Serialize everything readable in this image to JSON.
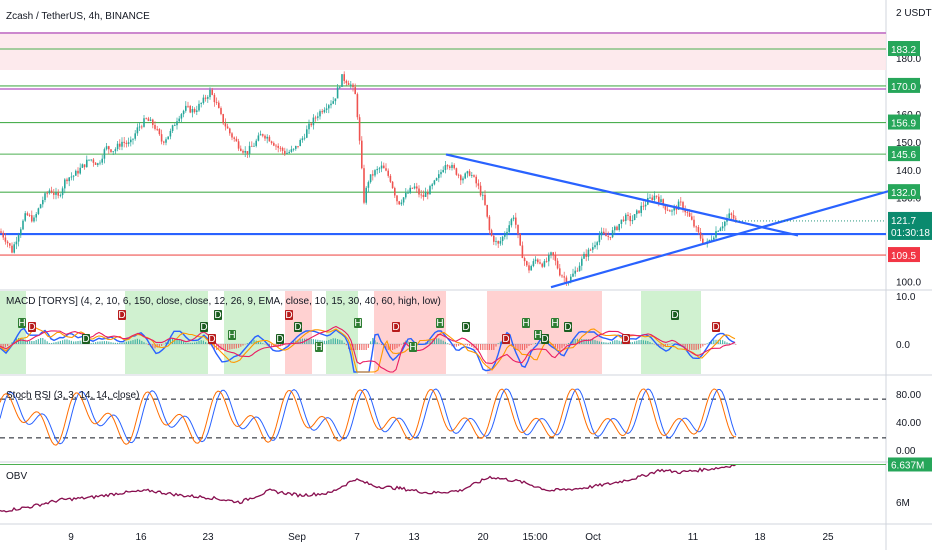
{
  "header": {
    "symbol_title": "Zcash / TetherUS, 4h, BINANCE",
    "quote_unit": "2 USDT"
  },
  "colors": {
    "bull": "#26a69a",
    "bear": "#ef5350",
    "green_line": "#4caf50",
    "red_line": "#ef5350",
    "purple_line": "#9c27b0",
    "blue_line": "#2962ff",
    "obv": "#880e4f",
    "price_tag": "#0b8a6e",
    "green_zone": "#c8efc8",
    "red_zone": "#ffc9c9"
  },
  "chart_data": [
    {
      "type": "candlestick",
      "panel": "price",
      "title": "Zcash / TetherUS, 4h, BINANCE",
      "ylim": [
        97,
        190
      ],
      "y_ticks": [
        100.0,
        110.0,
        120.0,
        130.0,
        140.0,
        150.0,
        160.0,
        170.0,
        180.0
      ],
      "x_tick_labels": [
        "9",
        "16",
        "23",
        "Sep",
        "7",
        "13",
        "20",
        "15:00",
        "Oct",
        "11",
        "18",
        "25"
      ],
      "horizontal_levels": [
        {
          "value": 183.2,
          "label": "183.2",
          "color": "green"
        },
        {
          "value": 170.0,
          "label": "170.0",
          "color": "green"
        },
        {
          "value": 156.9,
          "label": "156.9",
          "color": "green"
        },
        {
          "value": 145.6,
          "label": "145.6",
          "color": "green"
        },
        {
          "value": 132.0,
          "label": "132.0",
          "color": "green"
        },
        {
          "value": 117.0,
          "label": "",
          "color": "blue"
        },
        {
          "value": 109.5,
          "label": "109.5",
          "color": "red"
        }
      ],
      "last_price": {
        "value": "121.7",
        "countdown": "01:30:18"
      },
      "close_path": [
        [
          0,
          118
        ],
        [
          6,
          115
        ],
        [
          12,
          111
        ],
        [
          18,
          117
        ],
        [
          26,
          124
        ],
        [
          34,
          122
        ],
        [
          42,
          129
        ],
        [
          50,
          133
        ],
        [
          58,
          130
        ],
        [
          66,
          137
        ],
        [
          74,
          138
        ],
        [
          82,
          141
        ],
        [
          90,
          144
        ],
        [
          98,
          142
        ],
        [
          106,
          148
        ],
        [
          114,
          147
        ],
        [
          122,
          150
        ],
        [
          130,
          149
        ],
        [
          138,
          155
        ],
        [
          146,
          158
        ],
        [
          154,
          156
        ],
        [
          162,
          150
        ],
        [
          170,
          153
        ],
        [
          178,
          159
        ],
        [
          186,
          162
        ],
        [
          194,
          161
        ],
        [
          202,
          164
        ],
        [
          210,
          168
        ],
        [
          216,
          164
        ],
        [
          222,
          158
        ],
        [
          230,
          153
        ],
        [
          238,
          149
        ],
        [
          246,
          146
        ],
        [
          254,
          149
        ],
        [
          262,
          153
        ],
        [
          270,
          151
        ],
        [
          278,
          148
        ],
        [
          286,
          146
        ],
        [
          294,
          147
        ],
        [
          302,
          151
        ],
        [
          310,
          156
        ],
        [
          318,
          160
        ],
        [
          326,
          163
        ],
        [
          334,
          165
        ],
        [
          342,
          173
        ],
        [
          350,
          171
        ],
        [
          356,
          166
        ],
        [
          360,
          148
        ],
        [
          364,
          129
        ],
        [
          368,
          136
        ],
        [
          374,
          139
        ],
        [
          382,
          141
        ],
        [
          390,
          137
        ],
        [
          398,
          128
        ],
        [
          406,
          131
        ],
        [
          414,
          134
        ],
        [
          422,
          130
        ],
        [
          430,
          133
        ],
        [
          438,
          137
        ],
        [
          446,
          143
        ],
        [
          454,
          140
        ],
        [
          462,
          137
        ],
        [
          470,
          139
        ],
        [
          478,
          134
        ],
        [
          484,
          129
        ],
        [
          490,
          117
        ],
        [
          498,
          113
        ],
        [
          506,
          118
        ],
        [
          514,
          124
        ],
        [
          520,
          112
        ],
        [
          528,
          104
        ],
        [
          536,
          108
        ],
        [
          544,
          106
        ],
        [
          552,
          110
        ],
        [
          560,
          103
        ],
        [
          568,
          100
        ],
        [
          576,
          104
        ],
        [
          584,
          109
        ],
        [
          592,
          112
        ],
        [
          600,
          117
        ],
        [
          608,
          116
        ],
        [
          616,
          119
        ],
        [
          624,
          123
        ],
        [
          632,
          122
        ],
        [
          640,
          126
        ],
        [
          648,
          129
        ],
        [
          656,
          131
        ],
        [
          664,
          127
        ],
        [
          672,
          125
        ],
        [
          680,
          128
        ],
        [
          688,
          124
        ],
        [
          694,
          120
        ],
        [
          700,
          116
        ],
        [
          706,
          113
        ],
        [
          712,
          116
        ],
        [
          718,
          119
        ],
        [
          724,
          121
        ],
        [
          730,
          124
        ],
        [
          736,
          121.7
        ]
      ],
      "trendlines": [
        {
          "from": [
            446,
            145.5
          ],
          "to": [
            798,
            116.5
          ]
        },
        {
          "from": [
            551,
            98
          ],
          "to": [
            890,
            132.5
          ]
        }
      ]
    },
    {
      "type": "line",
      "panel": "macd",
      "title": "MACD [TORYS] (4, 2, 10, 6, 150, close, close, 12, 26, 9, EMA, close, 10, 15, 30, 40, 60, high, low)",
      "y_ticks": [
        10.0,
        0.0
      ],
      "zones": [
        {
          "x0": 0,
          "x1": 26,
          "color": "green"
        },
        {
          "x0": 125,
          "x1": 208,
          "color": "green"
        },
        {
          "x0": 224,
          "x1": 270,
          "color": "green"
        },
        {
          "x0": 285,
          "x1": 312,
          "color": "red"
        },
        {
          "x0": 326,
          "x1": 358,
          "color": "green"
        },
        {
          "x0": 374,
          "x1": 446,
          "color": "red"
        },
        {
          "x0": 487,
          "x1": 602,
          "color": "red"
        },
        {
          "x0": 641,
          "x1": 701,
          "color": "green"
        }
      ],
      "markers": [
        {
          "x": 22,
          "text": "H"
        },
        {
          "x": 32,
          "text": "D"
        },
        {
          "x": 86,
          "text": "D"
        },
        {
          "x": 122,
          "text": "D"
        },
        {
          "x": 204,
          "text": "D"
        },
        {
          "x": 212,
          "text": "D"
        },
        {
          "x": 218,
          "text": "D"
        },
        {
          "x": 232,
          "text": "H"
        },
        {
          "x": 280,
          "text": "D"
        },
        {
          "x": 289,
          "text": "D"
        },
        {
          "x": 298,
          "text": "D"
        },
        {
          "x": 319,
          "text": "H"
        },
        {
          "x": 358,
          "text": "H"
        },
        {
          "x": 396,
          "text": "D"
        },
        {
          "x": 413,
          "text": "H"
        },
        {
          "x": 440,
          "text": "H"
        },
        {
          "x": 466,
          "text": "D"
        },
        {
          "x": 506,
          "text": "D"
        },
        {
          "x": 526,
          "text": "H"
        },
        {
          "x": 538,
          "text": "H"
        },
        {
          "x": 545,
          "text": "D"
        },
        {
          "x": 555,
          "text": "H"
        },
        {
          "x": 568,
          "text": "D"
        },
        {
          "x": 626,
          "text": "D"
        },
        {
          "x": 675,
          "text": "D"
        },
        {
          "x": 716,
          "text": "D"
        }
      ]
    },
    {
      "type": "line",
      "panel": "stoch_rsi",
      "title": "Stoch RSI (3, 3, 14, 14, close)",
      "y_ticks": [
        80.0,
        40.0,
        0.0
      ],
      "ylim": [
        -5,
        105
      ],
      "band_levels": [
        80,
        20
      ]
    },
    {
      "type": "line",
      "panel": "obv",
      "title": "OBV",
      "y_ticks": [
        "6M"
      ],
      "last_value": "6.637M",
      "series": [
        {
          "x": [
            0,
            30,
            60,
            90,
            120,
            150,
            180,
            210,
            240,
            270,
            300,
            330,
            355,
            375,
            400,
            430,
            460,
            490,
            520,
            550,
            580,
            610,
            640,
            660,
            680,
            700,
            720,
            736
          ],
          "values": [
            0.1,
            0.2,
            0.35,
            0.4,
            0.5,
            0.55,
            0.45,
            0.4,
            0.3,
            0.55,
            0.45,
            0.5,
            0.8,
            0.65,
            0.6,
            0.5,
            0.55,
            0.85,
            0.75,
            0.55,
            0.6,
            0.7,
            0.85,
            1.0,
            0.95,
            1.0,
            1.05,
            1.12
          ]
        }
      ]
    }
  ]
}
